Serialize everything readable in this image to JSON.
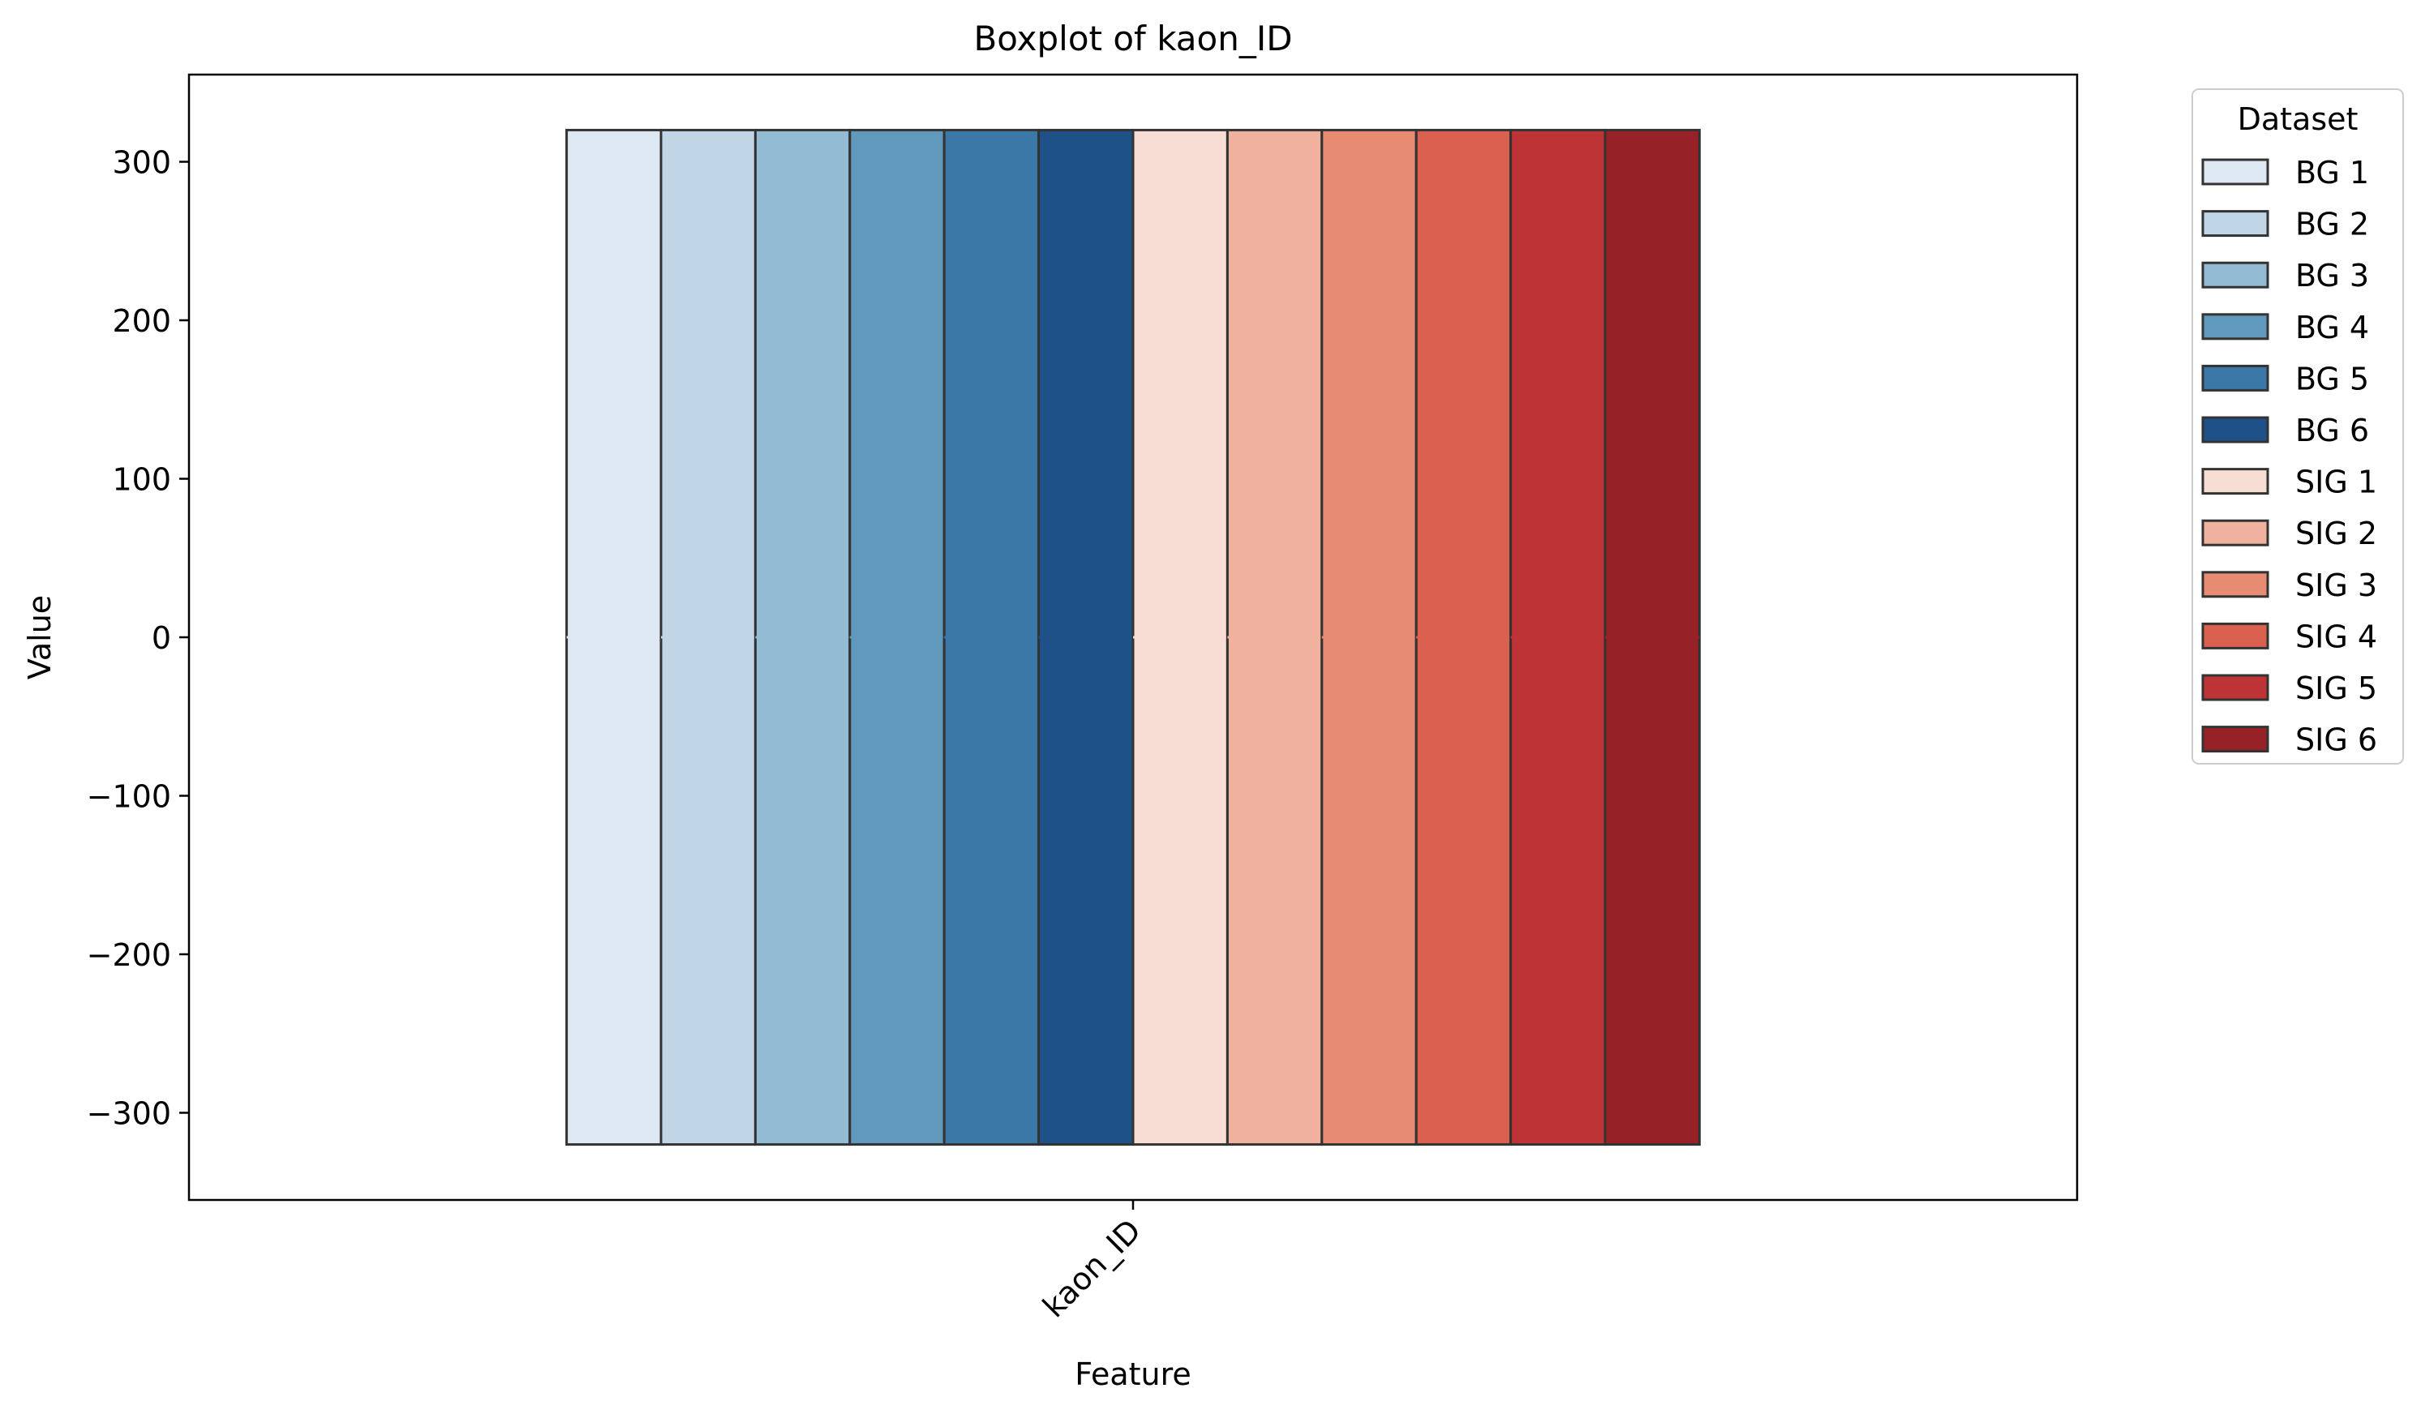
{
  "chart_data": {
    "type": "box",
    "title": "Boxplot of kaon_ID",
    "xlabel": "Feature",
    "ylabel": "Value",
    "categories": [
      "kaon_ID"
    ],
    "ylim": [
      -355,
      355
    ],
    "yticks": [
      -300,
      -200,
      -100,
      0,
      100,
      200,
      300
    ],
    "ytick_labels": [
      "−300",
      "−200",
      "−100",
      "0",
      "100",
      "200",
      "300"
    ],
    "grid": false,
    "legend": {
      "title": "Dataset",
      "placement": "outside-right"
    },
    "series": [
      {
        "name": "BG 1",
        "color": "#dee8f2",
        "q1": -320,
        "median": 0,
        "q3": 320,
        "whisker_low": -320,
        "whisker_high": 320
      },
      {
        "name": "BG 2",
        "color": "#c0d5e6",
        "q1": -320,
        "median": 0,
        "q3": 320,
        "whisker_low": -320,
        "whisker_high": 320
      },
      {
        "name": "BG 3",
        "color": "#93bbd3",
        "q1": -320,
        "median": 0,
        "q3": 320,
        "whisker_low": -320,
        "whisker_high": 320
      },
      {
        "name": "BG 4",
        "color": "#6199bd",
        "q1": -320,
        "median": 0,
        "q3": 320,
        "whisker_low": -320,
        "whisker_high": 320
      },
      {
        "name": "BG 5",
        "color": "#3b78a8",
        "q1": -320,
        "median": 0,
        "q3": 320,
        "whisker_low": -320,
        "whisker_high": 320
      },
      {
        "name": "BG 6",
        "color": "#1f5189",
        "q1": -320,
        "median": 0,
        "q3": 320,
        "whisker_low": -320,
        "whisker_high": 320
      },
      {
        "name": "SIG 1",
        "color": "#f7ddd3",
        "q1": -320,
        "median": 0,
        "q3": 320,
        "whisker_low": -320,
        "whisker_high": 320
      },
      {
        "name": "SIG 2",
        "color": "#f0b29e",
        "q1": -320,
        "median": 0,
        "q3": 320,
        "whisker_low": -320,
        "whisker_high": 320
      },
      {
        "name": "SIG 3",
        "color": "#e78b73",
        "q1": -320,
        "median": 0,
        "q3": 320,
        "whisker_low": -320,
        "whisker_high": 320
      },
      {
        "name": "SIG 4",
        "color": "#da604f",
        "q1": -320,
        "median": 0,
        "q3": 320,
        "whisker_low": -320,
        "whisker_high": 320
      },
      {
        "name": "SIG 5",
        "color": "#be3436",
        "q1": -320,
        "median": 0,
        "q3": 320,
        "whisker_low": -320,
        "whisker_high": 320
      },
      {
        "name": "SIG 6",
        "color": "#962127",
        "q1": -320,
        "median": 0,
        "q3": 320,
        "whisker_low": -320,
        "whisker_high": 320
      }
    ],
    "edge_color": "#333333"
  }
}
